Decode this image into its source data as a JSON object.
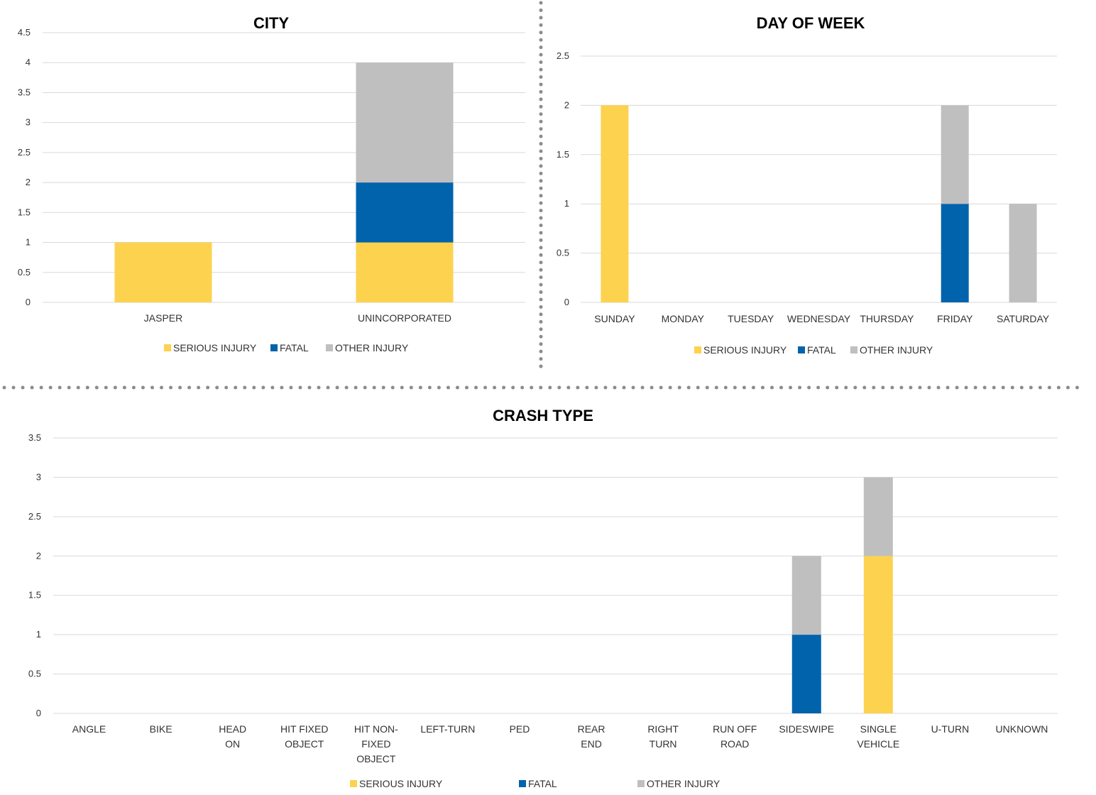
{
  "colors": {
    "serious_injury": "#FDD24F",
    "fatal": "#0063AC",
    "other_injury": "#BFBFBF",
    "separator": "#8C8C8C"
  },
  "chart_data": [
    {
      "id": "city",
      "type": "bar",
      "stacked": true,
      "title": "CITY",
      "categories": [
        "JASPER",
        "UNINCORPORATED"
      ],
      "series": [
        {
          "name": "SERIOUS INJURY",
          "color": "#FDD24F",
          "values": [
            1,
            1
          ]
        },
        {
          "name": "FATAL",
          "color": "#0063AC",
          "values": [
            0,
            1
          ]
        },
        {
          "name": "OTHER INJURY",
          "color": "#BFBFBF",
          "values": [
            0,
            2
          ]
        }
      ],
      "yticks": [
        "0",
        "0.5",
        "1",
        "1.5",
        "2",
        "2.5",
        "3",
        "3.5",
        "4",
        "4.5"
      ],
      "ylim": [
        0,
        4.5
      ],
      "grid": true,
      "legend_position": "bottom"
    },
    {
      "id": "day",
      "type": "bar",
      "stacked": true,
      "title": "DAY OF WEEK",
      "categories": [
        "SUNDAY",
        "MONDAY",
        "TUESDAY",
        "WEDNESDAY",
        "THURSDAY",
        "FRIDAY",
        "SATURDAY"
      ],
      "series": [
        {
          "name": "SERIOUS INJURY",
          "color": "#FDD24F",
          "values": [
            2,
            0,
            0,
            0,
            0,
            0,
            0
          ]
        },
        {
          "name": "FATAL",
          "color": "#0063AC",
          "values": [
            0,
            0,
            0,
            0,
            0,
            1,
            0
          ]
        },
        {
          "name": "OTHER INJURY",
          "color": "#BFBFBF",
          "values": [
            0,
            0,
            0,
            0,
            0,
            1,
            1
          ]
        }
      ],
      "yticks": [
        "0",
        "0.5",
        "1",
        "1.5",
        "2",
        "2.5"
      ],
      "ylim": [
        0,
        2.5
      ],
      "grid": true,
      "legend_position": "bottom"
    },
    {
      "id": "crash",
      "type": "bar",
      "stacked": true,
      "title": "CRASH TYPE",
      "categories": [
        [
          "ANGLE"
        ],
        [
          "BIKE"
        ],
        [
          "HEAD",
          "ON"
        ],
        [
          "HIT FIXED",
          "OBJECT"
        ],
        [
          "HIT NON-",
          "FIXED",
          "OBJECT"
        ],
        [
          "LEFT-TURN"
        ],
        [
          "PED"
        ],
        [
          "REAR",
          "END"
        ],
        [
          "RIGHT",
          "TURN"
        ],
        [
          "RUN OFF",
          "ROAD"
        ],
        [
          "SIDESWIPE"
        ],
        [
          "SINGLE",
          "VEHICLE"
        ],
        [
          "U-TURN"
        ],
        [
          "UNKNOWN"
        ]
      ],
      "series": [
        {
          "name": "SERIOUS INJURY",
          "color": "#FDD24F",
          "values": [
            0,
            0,
            0,
            0,
            0,
            0,
            0,
            0,
            0,
            0,
            0,
            2,
            0,
            0
          ]
        },
        {
          "name": "FATAL",
          "color": "#0063AC",
          "values": [
            0,
            0,
            0,
            0,
            0,
            0,
            0,
            0,
            0,
            0,
            1,
            0,
            0,
            0
          ]
        },
        {
          "name": "OTHER INJURY",
          "color": "#BFBFBF",
          "values": [
            0,
            0,
            0,
            0,
            0,
            0,
            0,
            0,
            0,
            0,
            1,
            1,
            0,
            0
          ]
        }
      ],
      "yticks": [
        "0",
        "0.5",
        "1",
        "1.5",
        "2",
        "2.5",
        "3",
        "3.5"
      ],
      "ylim": [
        0,
        3.5
      ],
      "grid": true,
      "legend_position": "bottom"
    }
  ]
}
